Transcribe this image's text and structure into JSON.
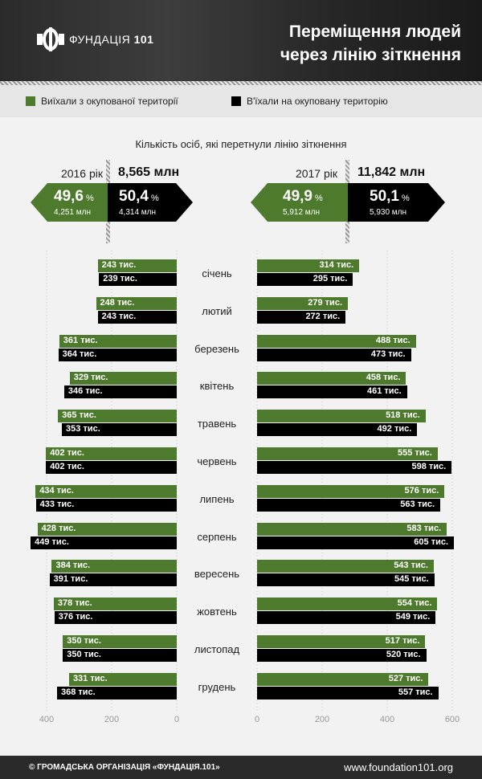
{
  "header": {
    "logo_name": "ФУНДАЦІЯ",
    "logo_num": "101",
    "title_line1": "Переміщення людей",
    "title_line2": "через лінію зіткнення"
  },
  "legend": {
    "left_label": "Виїхали з окупованої території",
    "right_label": "В'їхали на окуповану територію",
    "left_color": "#4d7a2c",
    "right_color": "#000000"
  },
  "summary": {
    "y2016": {
      "year_label": "2016 рік",
      "total": "8,565 млн",
      "left_pct": "49,6",
      "left_mln": "4,251 млн",
      "right_pct": "50,4",
      "right_mln": "4,314 млн"
    },
    "y2017": {
      "year_label": "2017 рік",
      "total": "11,842 млн",
      "left_pct": "49,9",
      "left_mln": "5,912 млн",
      "right_pct": "50,1",
      "right_mln": "5,930 млн"
    },
    "pct_sign": "%"
  },
  "chart_data": {
    "type": "bar",
    "title": "Кількість осіб, які перетнули лінію зіткнення",
    "unit": "тис.",
    "categories": [
      "січень",
      "лютий",
      "березень",
      "квітень",
      "травень",
      "червень",
      "липень",
      "серпень",
      "вересень",
      "жовтень",
      "листопад",
      "грудень"
    ],
    "series": [
      {
        "name": "Виїхали з окупованої території",
        "year": "2016",
        "color": "#4d7a2c",
        "values": [
          243,
          248,
          361,
          329,
          365,
          402,
          434,
          428,
          384,
          378,
          350,
          331
        ]
      },
      {
        "name": "В'їхали на окуповану територію",
        "year": "2016",
        "color": "#000000",
        "values": [
          239,
          243,
          364,
          346,
          353,
          402,
          433,
          449,
          391,
          376,
          350,
          368
        ]
      },
      {
        "name": "Виїхали з окупованої території",
        "year": "2017",
        "color": "#4d7a2c",
        "values": [
          314,
          279,
          488,
          458,
          518,
          555,
          576,
          583,
          543,
          554,
          517,
          527
        ]
      },
      {
        "name": "В'їхали на окуповану територію",
        "year": "2017",
        "color": "#000000",
        "values": [
          295,
          272,
          473,
          461,
          492,
          598,
          563,
          605,
          545,
          549,
          520,
          557
        ]
      }
    ],
    "left_axis": {
      "ticks": [
        400,
        200,
        0
      ],
      "range": [
        0,
        450
      ]
    },
    "right_axis": {
      "ticks": [
        0,
        200,
        400,
        600
      ],
      "range": [
        0,
        600
      ]
    },
    "grid": true
  },
  "footer": {
    "copyright": "© ГРОМАДСЬКА ОРГАНІЗАЦІЯ «ФУНДАЦІЯ.101»",
    "site": "www.foundation101.org"
  }
}
